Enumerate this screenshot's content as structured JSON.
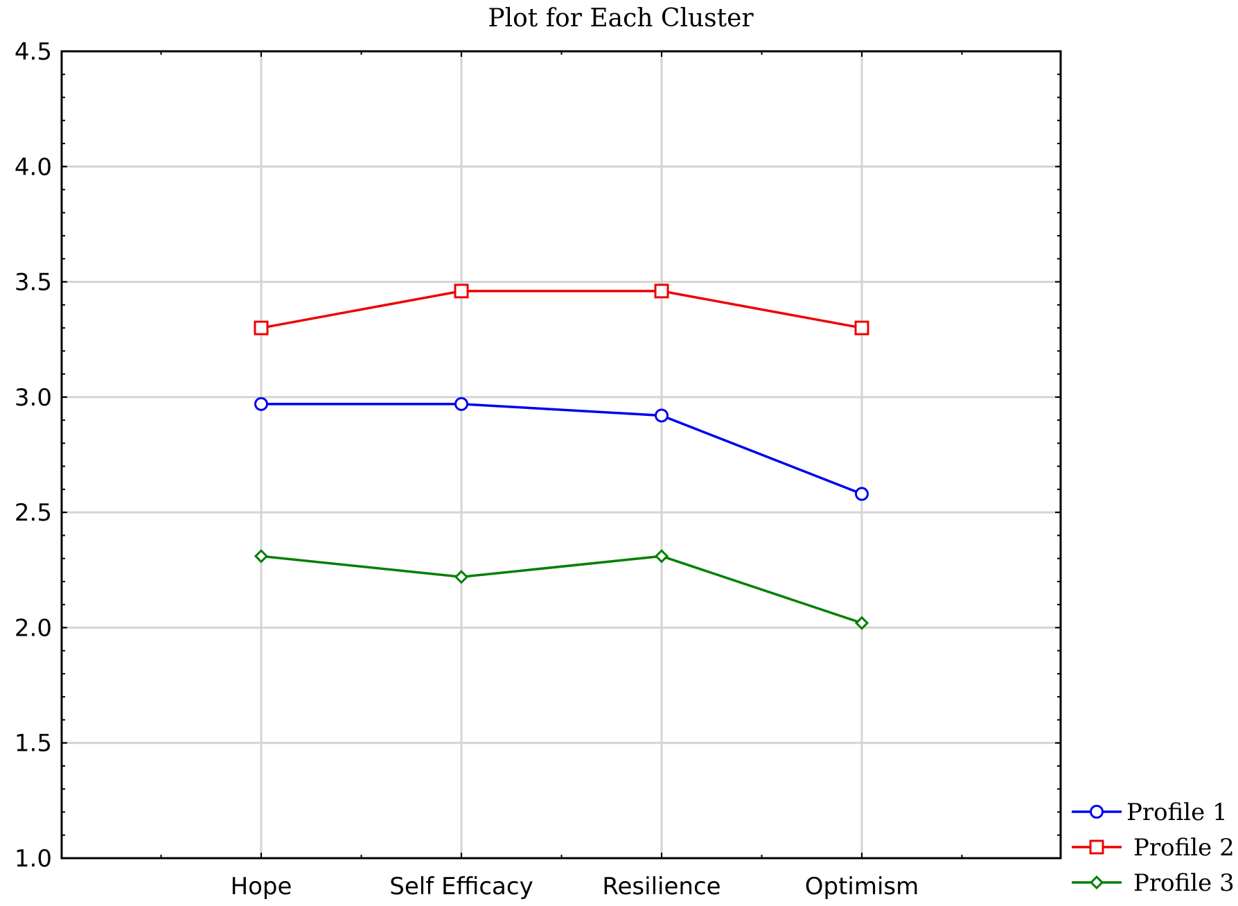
{
  "chart_data": {
    "type": "line",
    "title": "Plot for Each Cluster",
    "xlabel": "",
    "ylabel": "",
    "categories": [
      "Hope",
      "Self Efficacy",
      "Resilience",
      "Optimism"
    ],
    "ylim": [
      1.0,
      4.5
    ],
    "yticks": [
      "1.0",
      "1.5",
      "2.0",
      "2.5",
      "3.0",
      "3.5",
      "4.0",
      "4.5"
    ],
    "grid": true,
    "legend_position": "bottom-right, outside plot",
    "series": [
      {
        "name": "Profile 1",
        "color": "#0000ee",
        "marker": "circle",
        "values": [
          2.97,
          2.97,
          2.92,
          2.58
        ]
      },
      {
        "name": "Profile 2",
        "color": "#ee0000",
        "marker": "square",
        "values": [
          3.3,
          3.46,
          3.46,
          3.3
        ]
      },
      {
        "name": "Profile 3",
        "color": "#008000",
        "marker": "diamond",
        "values": [
          2.31,
          2.22,
          2.31,
          2.02
        ]
      }
    ]
  }
}
